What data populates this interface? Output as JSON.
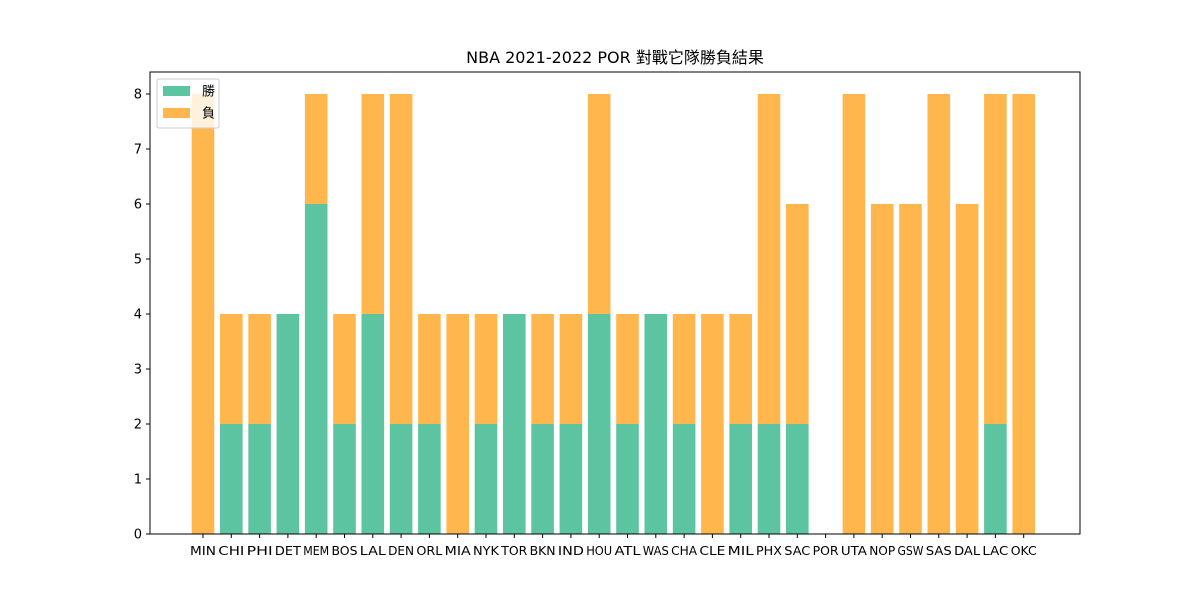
{
  "chart_data": {
    "type": "bar",
    "stacked": true,
    "title": "NBA 2021-2022 POR 對戰它隊勝負結果",
    "xlabel": "",
    "ylabel": "",
    "ylim": [
      0,
      8.4
    ],
    "yticks": [
      0,
      1,
      2,
      3,
      4,
      5,
      6,
      7,
      8
    ],
    "grid": false,
    "legend_position": "top-left",
    "categories": [
      "MIN",
      "CHI",
      "PHI",
      "DET",
      "MEM",
      "BOS",
      "LAL",
      "DEN",
      "ORL",
      "MIA",
      "NYK",
      "TOR",
      "BKN",
      "IND",
      "HOU",
      "ATL",
      "WAS",
      "CHA",
      "CLE",
      "MIL",
      "PHX",
      "SAC",
      "POR",
      "UTA",
      "NOP",
      "GSW",
      "SAS",
      "DAL",
      "LAC",
      "OKC"
    ],
    "series": [
      {
        "name": "勝",
        "color": "#5cc4a0",
        "values": [
          0,
          2,
          2,
          4,
          6,
          2,
          4,
          2,
          2,
          0,
          2,
          4,
          2,
          2,
          4,
          2,
          4,
          2,
          0,
          2,
          2,
          2,
          0,
          0,
          0,
          0,
          0,
          0,
          2,
          0
        ]
      },
      {
        "name": "負",
        "color": "#ffb74d",
        "values": [
          8,
          2,
          2,
          0,
          2,
          2,
          4,
          6,
          2,
          4,
          2,
          0,
          2,
          2,
          4,
          2,
          0,
          2,
          4,
          2,
          6,
          4,
          0,
          8,
          6,
          6,
          8,
          6,
          6,
          8
        ]
      }
    ]
  }
}
